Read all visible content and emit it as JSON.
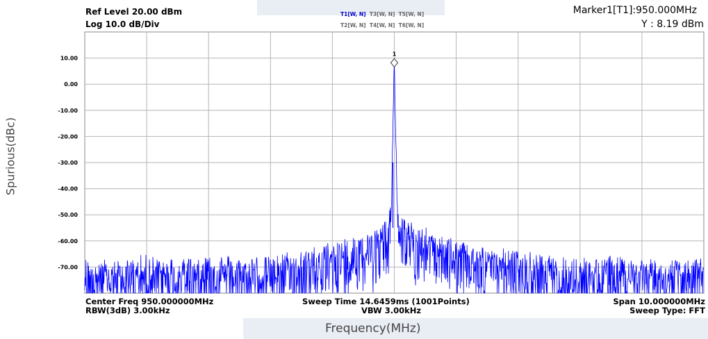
{
  "header": {
    "ref_level": "Ref Level 20.00 dBm",
    "scale": "Log 10.0 dB/Div",
    "traces_row1": [
      "T1[W, N]",
      "T3[W, N]",
      "T5[W, N]"
    ],
    "traces_row2": [
      "T2[W, N]",
      "T4[W, N]",
      "T6[W, N]"
    ],
    "marker_title": "Marker1[T1]:950.000MHz",
    "marker_value": "Y : 8.19 dBm"
  },
  "footer": {
    "center_freq": "Center Freq 950.000000MHz",
    "rbw": "RBW(3dB) 3.00kHz",
    "sweep_time": "Sweep Time 14.6459ms (1001Points)",
    "vbw": "VBW 3.00kHz",
    "span": "Span 10.000000MHz",
    "sweep_type": "Sweep Type: FFT"
  },
  "chart_data": {
    "type": "line",
    "ylabel": "Spurious(dBc)",
    "xlabel": "Frequency(MHz)",
    "ylim": [
      -80,
      20
    ],
    "xlim": [
      945,
      955
    ],
    "grid": true,
    "y_ticks": [
      "10.00",
      "0.00",
      "-10.00",
      "-20.00",
      "-30.00",
      "-40.00",
      "-50.00",
      "-60.00",
      "-70.00"
    ],
    "y_tick_values": [
      10,
      0,
      -10,
      -20,
      -30,
      -40,
      -50,
      -60,
      -70
    ],
    "series": [
      {
        "color": "#0000ff",
        "x": [
          945.0,
          945.5,
          946.0,
          946.5,
          947.0,
          947.5,
          948.0,
          948.5,
          949.0,
          949.3,
          949.6,
          949.8,
          949.9,
          949.95,
          950.0,
          950.05,
          950.1,
          950.2,
          950.4,
          950.7,
          951.0,
          951.5,
          952.0,
          952.5,
          953.0,
          953.5,
          954.0,
          954.5,
          955.0
        ],
        "y": [
          -73,
          -74,
          -72,
          -73,
          -71,
          -73,
          -72,
          -70,
          -67,
          -64,
          -62,
          -60,
          -57,
          -50,
          8.19,
          -50,
          -56,
          -58,
          -61,
          -63,
          -66,
          -69,
          -70,
          -72,
          -73,
          -72,
          -73,
          -74,
          -73
        ]
      }
    ],
    "noise_floor_dBm": -73,
    "marker": {
      "label": "1",
      "x": 950.0,
      "y": 8.19
    }
  }
}
